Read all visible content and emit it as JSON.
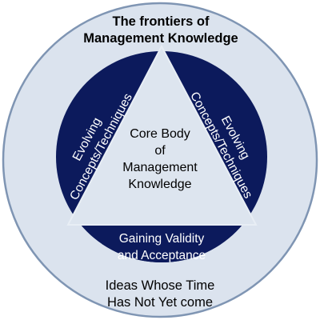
{
  "colors": {
    "outer_fill": "#dbe3ee",
    "outer_stroke": "#7f95b3",
    "band_fill": "#0c1a5c",
    "triangle_fill": "#dde5ef",
    "triangle_stroke": "#e8eef5",
    "dark_text": "#000000",
    "light_text": "#ffffff"
  },
  "outer_ring": {
    "top_lines": [
      "The frontiers of",
      "Management Knowledge"
    ],
    "bottom_lines": [
      "Ideas Whose Time",
      "Has Not Yet come"
    ]
  },
  "center": {
    "lines": [
      "Core Body",
      "of",
      "Management",
      "Knowledge"
    ]
  },
  "left_band": {
    "lines": [
      "Evolving",
      "Concepts/Techniques"
    ]
  },
  "right_band": {
    "lines": [
      "Evolving",
      "Concepts/Techniques"
    ]
  },
  "bottom_band": {
    "lines": [
      "Gaining Validity",
      "and Acceptance"
    ]
  }
}
